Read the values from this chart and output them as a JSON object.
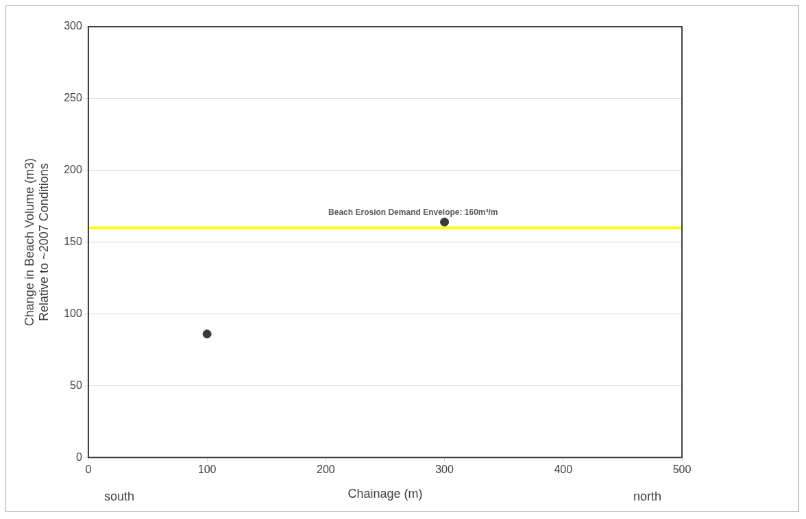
{
  "chart_data": {
    "type": "scatter",
    "xlabel": "Chainage (m)",
    "ylabel": "Change in Beach Volume (m3)\nRelative to ~2007 Conditions",
    "series": [
      {
        "color": "#3a3a3a",
        "x": [
          100,
          300
        ],
        "values": [
          86,
          164
        ]
      }
    ],
    "xlim": [
      0,
      500
    ],
    "xticks": [
      0,
      100,
      200,
      300,
      400,
      500
    ],
    "ylim": [
      0,
      300
    ],
    "yticks": [
      0,
      50,
      100,
      150,
      200,
      250,
      300
    ],
    "grid": "y",
    "marker": "circle",
    "legend": false,
    "ref_lines": [
      {
        "axis": "y",
        "value": 160,
        "label": "Beach Erosion Demand Envelope: 160m³/m",
        "color": "#ffff00"
      }
    ],
    "annotations": [
      "south",
      "north"
    ]
  }
}
